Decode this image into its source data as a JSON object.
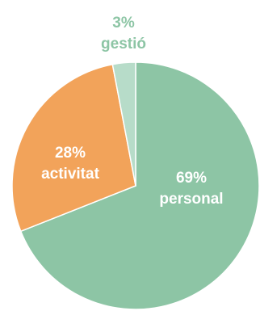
{
  "chart_data": {
    "type": "pie",
    "slices": [
      {
        "label": "personal",
        "value": 69,
        "value_text": "69%",
        "color": "#8dc5a5",
        "label_color": "#ffffff"
      },
      {
        "label": "activitat",
        "value": 28,
        "value_text": "28%",
        "color": "#f2a35a",
        "label_color": "#ffffff"
      },
      {
        "label": "gestió",
        "value": 3,
        "value_text": "3%",
        "color": "#b7dcc9",
        "label_color": "#8dc5a5"
      }
    ],
    "start": "12 o'clock",
    "direction": "clockwise",
    "legend": "none"
  }
}
